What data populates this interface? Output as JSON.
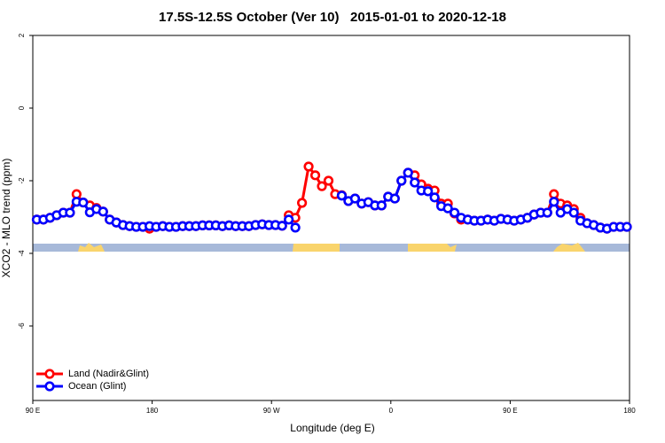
{
  "chart_data": {
    "type": "line",
    "title": "17.5S-12.5S October (Ver 10)   2015-01-01 to 2020-12-18",
    "xlabel": "Longitude (deg E)",
    "ylabel": "XCO2 - MLO trend (ppm)",
    "x": [
      93,
      98,
      103,
      108,
      113,
      118,
      123,
      128,
      133,
      138,
      143,
      148,
      153,
      158,
      163,
      168,
      173,
      178,
      183,
      188,
      193,
      198,
      203,
      208,
      213,
      218,
      223,
      228,
      233,
      238,
      243,
      248,
      253,
      258,
      263,
      268,
      273,
      278,
      283,
      288,
      293,
      298,
      303,
      308,
      313,
      318,
      323,
      328,
      333,
      338,
      343,
      348,
      353,
      358,
      363,
      368,
      373,
      378,
      383,
      388,
      393,
      398,
      403,
      408,
      413,
      418,
      423,
      428,
      433,
      438,
      443,
      448,
      453,
      458,
      463,
      468,
      473,
      478,
      483,
      488,
      493,
      498,
      503,
      508,
      513,
      518,
      523,
      528,
      533,
      538
    ],
    "series": [
      {
        "name": "Land (Nadir&Glint)",
        "color": "#ff0000",
        "values": [
          -3.07,
          -3.07,
          -3.02,
          -2.95,
          -2.88,
          -2.88,
          -2.37,
          -2.6,
          -2.68,
          -2.75,
          -2.85,
          -3.07,
          -3.15,
          -3.22,
          -3.25,
          -3.27,
          -3.27,
          -3.32,
          -3.27,
          -3.25,
          -3.27,
          -3.27,
          -3.25,
          -3.25,
          -3.25,
          -3.23,
          -3.23,
          -3.23,
          -3.25,
          -3.23,
          -3.25,
          -3.25,
          -3.25,
          -3.22,
          -3.2,
          -3.22,
          -3.22,
          -3.24,
          -2.95,
          -3.02,
          -2.61,
          -1.61,
          -1.85,
          -2.15,
          -2.0,
          -2.37,
          -2.4,
          -2.56,
          -2.49,
          -2.63,
          -2.59,
          -2.68,
          -2.68,
          -2.44,
          -2.49,
          -2.0,
          -1.78,
          -1.85,
          -2.1,
          -2.22,
          -2.27,
          -2.63,
          -2.63,
          -2.9,
          -3.07,
          -3.07,
          -3.1,
          -3.1,
          -3.07,
          -3.1,
          -3.05,
          -3.07,
          -3.1,
          -3.07,
          -3.02,
          -2.93,
          -2.88,
          -2.88,
          -2.37,
          -2.63,
          -2.68,
          -2.78,
          -3.02,
          -3.17,
          -3.22,
          -3.29,
          -3.32,
          -3.27,
          -3.27,
          -3.27
        ]
      },
      {
        "name": "Ocean (Glint)",
        "color": "#0000ff",
        "values": [
          -3.07,
          -3.07,
          -3.02,
          -2.95,
          -2.88,
          -2.88,
          -2.58,
          -2.6,
          -2.87,
          -2.78,
          -2.85,
          -3.07,
          -3.15,
          -3.22,
          -3.25,
          -3.27,
          -3.27,
          -3.25,
          -3.27,
          -3.25,
          -3.27,
          -3.27,
          -3.25,
          -3.25,
          -3.25,
          -3.23,
          -3.23,
          -3.23,
          -3.25,
          -3.23,
          -3.25,
          -3.25,
          -3.25,
          -3.22,
          -3.2,
          -3.22,
          -3.22,
          -3.24,
          -3.07,
          -3.29,
          null,
          null,
          null,
          null,
          null,
          null,
          -2.41,
          -2.56,
          -2.49,
          -2.63,
          -2.59,
          -2.68,
          -2.68,
          -2.44,
          -2.49,
          -2.0,
          -1.78,
          -2.05,
          -2.27,
          -2.29,
          -2.46,
          -2.7,
          -2.76,
          -2.88,
          -3.02,
          -3.07,
          -3.1,
          -3.1,
          -3.07,
          -3.1,
          -3.05,
          -3.07,
          -3.1,
          -3.07,
          -3.02,
          -2.93,
          -2.88,
          -2.88,
          -2.58,
          -2.88,
          -2.78,
          -2.88,
          -3.1,
          -3.17,
          -3.22,
          -3.29,
          -3.32,
          -3.27,
          -3.27,
          -3.27
        ]
      }
    ],
    "xlim": [
      90,
      540
    ],
    "xticks": [
      {
        "value": 90,
        "label": "90 E"
      },
      180,
      {
        "value": 270,
        "label": "90 W"
      },
      {
        "value": 360,
        "label": "0"
      },
      {
        "value": 450,
        "label": "90 E"
      },
      {
        "value": 540,
        "label": "180"
      }
    ],
    "ylim": [
      -8.05,
      2
    ],
    "yticks": [
      2,
      0,
      -2,
      -4,
      -6
    ],
    "legend": "bottomleft"
  }
}
